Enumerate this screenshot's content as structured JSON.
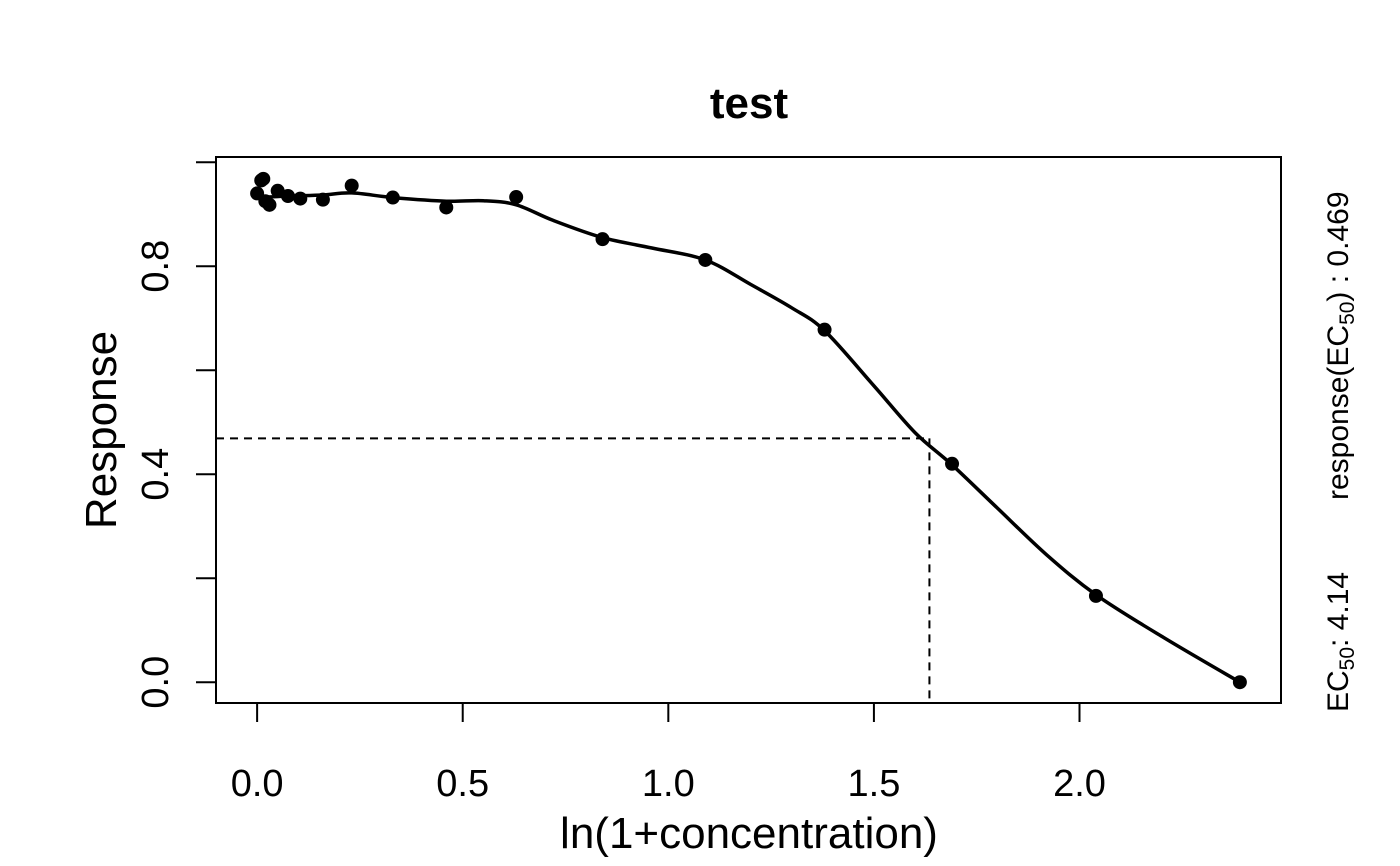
{
  "chart_data": {
    "type": "scatter",
    "title": "test",
    "xlabel": "ln(1+concentration)",
    "ylabel": "Response",
    "xlim": [
      -0.1,
      2.49
    ],
    "ylim": [
      -0.04,
      1.01
    ],
    "x_ticks": [
      0.0,
      0.5,
      1.0,
      1.5,
      2.0
    ],
    "x_tick_labels": [
      "0.0",
      "0.5",
      "1.0",
      "1.5",
      "2.0"
    ],
    "y_ticks": [
      0.0,
      0.2,
      0.4,
      0.6,
      0.8,
      1.0
    ],
    "y_tick_labels": [
      "0.0",
      "",
      "0.4",
      "",
      "0.8",
      ""
    ],
    "grid": false,
    "legend": "none",
    "colors": {
      "points": "#000000",
      "curve": "#000000",
      "reference_lines": "#000000"
    },
    "points": {
      "x": [
        0.0,
        0.01,
        0.015,
        0.02,
        0.03,
        0.05,
        0.075,
        0.105,
        0.16,
        0.23,
        0.33,
        0.46,
        0.63,
        0.84,
        1.09,
        1.38,
        1.69,
        2.04,
        2.39
      ],
      "y": [
        0.94,
        0.965,
        0.968,
        0.925,
        0.918,
        0.945,
        0.935,
        0.93,
        0.928,
        0.955,
        0.932,
        0.913,
        0.933,
        0.852,
        0.812,
        0.678,
        0.42,
        0.166,
        0.0
      ]
    },
    "fitted_curve": {
      "x": [
        0.0,
        0.08,
        0.16,
        0.23,
        0.33,
        0.46,
        0.55,
        0.63,
        0.72,
        0.84,
        0.96,
        1.09,
        1.2,
        1.3,
        1.38,
        1.5,
        1.6,
        1.69,
        1.8,
        1.92,
        2.04,
        2.2,
        2.39
      ],
      "y": [
        0.932,
        0.935,
        0.937,
        0.941,
        0.932,
        0.925,
        0.926,
        0.918,
        0.888,
        0.855,
        0.835,
        0.812,
        0.765,
        0.72,
        0.676,
        0.57,
        0.48,
        0.418,
        0.335,
        0.245,
        0.168,
        0.088,
        0.0
      ]
    },
    "ec50_reference": {
      "x": 1.635,
      "y": 0.469
    },
    "annotations": {
      "ec50_prefix": "EC",
      "ec50_sub": "50",
      "ec50_value": ": 4.14",
      "response_prefix": "response(EC",
      "response_sub": "50",
      "response_value": ") : 0.469"
    }
  }
}
